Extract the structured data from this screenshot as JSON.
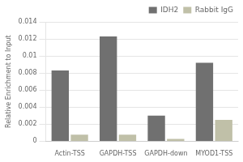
{
  "chart_data": {
    "type": "bar",
    "ylabel": "Relative Enrichment to Input",
    "categories": [
      "Actin-TSS",
      "GAPDH-TSS",
      "GAPDH-down",
      "MYOD1-TSS"
    ],
    "series": [
      {
        "name": "IDH2",
        "color": "#707070",
        "values": [
          0.0083,
          0.0123,
          0.003,
          0.0092
        ]
      },
      {
        "name": "Rabbit IgG",
        "color": "#c0c0a8",
        "values": [
          0.00078,
          0.00078,
          0.00028,
          0.0025
        ]
      }
    ],
    "ylim": [
      0,
      0.014
    ],
    "yticks": [
      0,
      0.002,
      0.004,
      0.006,
      0.008,
      0.01,
      0.012,
      0.014
    ],
    "grid": true,
    "legend": "upper right"
  }
}
